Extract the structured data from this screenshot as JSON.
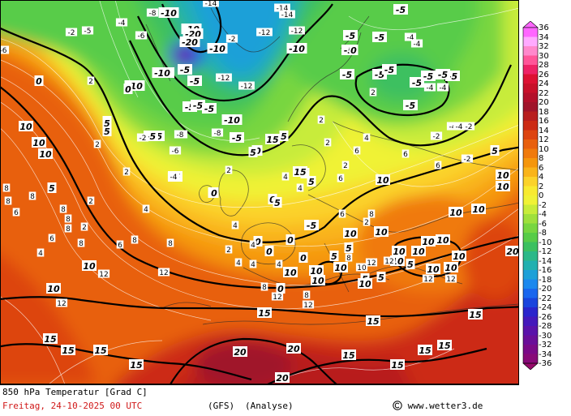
{
  "map": {
    "product_title": "850 hPa Temperatur [Grad C]",
    "run_datetime": "Freitag, 24-10-2025  00 UTC",
    "model": "(GFS)",
    "analysis": "(Analyse)",
    "copyright": "www.wetter3.de",
    "copyright_icon": "copyright-icon"
  },
  "legend": {
    "labels": [
      "36",
      "34",
      "32",
      "30",
      "28",
      "26",
      "24",
      "22",
      "20",
      "18",
      "16",
      "14",
      "12",
      "10",
      "8",
      "6",
      "4",
      "2",
      "0",
      "-2",
      "-4",
      "-6",
      "-8",
      "-10",
      "-12",
      "-14",
      "-16",
      "-18",
      "-20",
      "-22",
      "-24",
      "-26",
      "-28",
      "-30",
      "-32",
      "-34",
      "-36"
    ],
    "colors": [
      "#ff66ff",
      "#ffaaff",
      "#ff88cc",
      "#ff5599",
      "#ee2266",
      "#dd1133",
      "#c8102a",
      "#b3102a",
      "#a0142a",
      "#b81e1e",
      "#cc2a14",
      "#dd4410",
      "#e8600e",
      "#f07a0c",
      "#f5960c",
      "#f9b41a",
      "#fbd22a",
      "#f8ea30",
      "#f0f236",
      "#c8ec3a",
      "#9fe03c",
      "#78d640",
      "#58cc48",
      "#3cc060",
      "#2cb888",
      "#22b0b0",
      "#1ea0d8",
      "#1c88ee",
      "#1a66ee",
      "#1a44dd",
      "#2a24cc",
      "#4418bb",
      "#5a12aa",
      "#6a0e99",
      "#7a0a88",
      "#880a78",
      "#960a6a"
    ]
  },
  "labels": {
    "bold": [
      "-10",
      "-10",
      "-20",
      "-20",
      "-10",
      "-5",
      "-5",
      "-10",
      "-10",
      "-5",
      "-5",
      "-5",
      "-5",
      "-5",
      "-5",
      "-5",
      "-5",
      "-10",
      "-5",
      "-5",
      "-5",
      "-5",
      "-5",
      "-10",
      "-5",
      "-5",
      "-5",
      "-5",
      "-5",
      "0",
      "0",
      "0",
      "0",
      "0",
      "0",
      "0",
      "0",
      "0",
      "0",
      "0",
      "0",
      "0",
      "5",
      "5",
      "5",
      "5",
      "5",
      "5",
      "5",
      "5",
      "5",
      "5",
      "5",
      "5",
      "5",
      "10",
      "10",
      "10",
      "10",
      "10",
      "10",
      "10",
      "10",
      "10",
      "10",
      "10",
      "10",
      "10",
      "10",
      "10",
      "10",
      "10",
      "10",
      "10",
      "10",
      "10",
      "15",
      "15",
      "15",
      "15",
      "15",
      "15",
      "15",
      "15",
      "15",
      "15",
      "15",
      "20",
      "20",
      "20",
      "20",
      "20",
      "-5",
      "-5",
      "-5",
      "10",
      "10",
      "10",
      "10",
      "15",
      "15",
      "5",
      "5"
    ],
    "small": [
      "-8",
      "-4",
      "-5",
      "-2",
      "-6",
      "-14",
      "-12",
      "-14",
      "-12",
      "-8",
      "-12",
      "-14",
      "-12",
      "-4",
      "-2",
      "-4",
      "-8",
      "-2",
      "-6",
      "-4",
      "-8",
      "-2",
      "-4",
      "-2",
      "2",
      "2",
      "2",
      "4",
      "4",
      "4",
      "4",
      "4",
      "4",
      "2",
      "2",
      "2",
      "6",
      "6",
      "6",
      "8",
      "8",
      "8",
      "8",
      "8",
      "8",
      "8",
      "8",
      "8",
      "12",
      "12",
      "12",
      "12",
      "12",
      "12",
      "12",
      "12",
      "12",
      "-4",
      "-4",
      "-4",
      "-2",
      "2",
      "2",
      "4",
      "4",
      "6",
      "6",
      "8",
      "8",
      "2",
      "6",
      "8",
      "10",
      "4",
      "6",
      "2",
      "4",
      "6",
      "8",
      "2",
      "2",
      "-2",
      "-6",
      "-8"
    ]
  }
}
